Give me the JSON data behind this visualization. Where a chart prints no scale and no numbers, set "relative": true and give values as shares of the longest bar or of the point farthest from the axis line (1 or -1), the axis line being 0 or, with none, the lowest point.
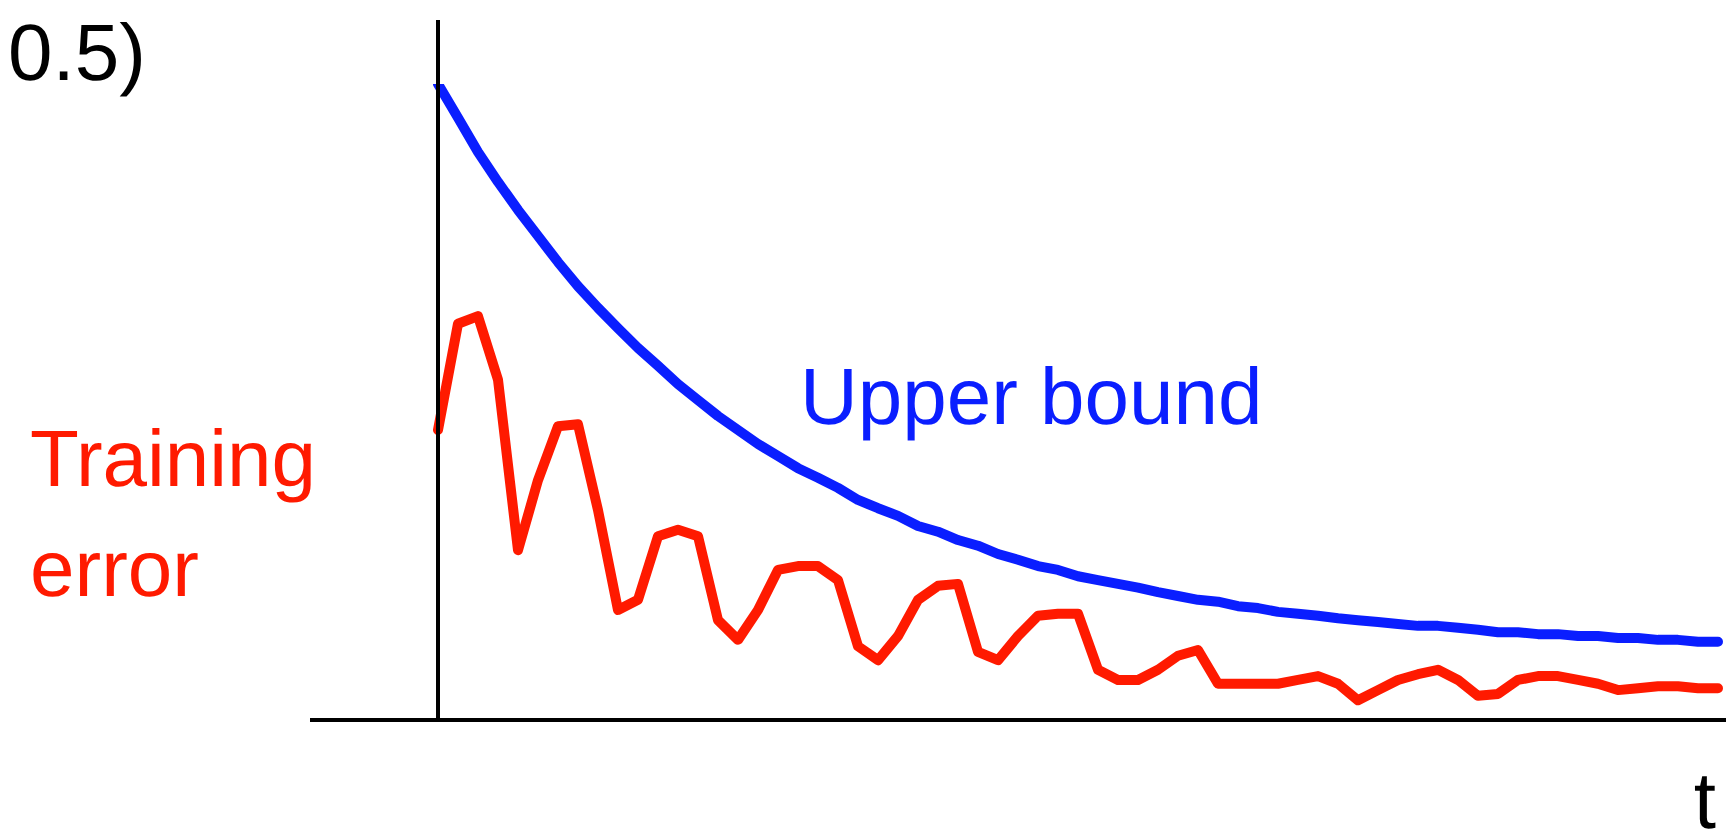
{
  "chart_data": {
    "type": "line",
    "relative": true,
    "xlabel": "t",
    "annotations": [
      "0.5)"
    ],
    "categories": [
      null,
      null,
      null,
      null,
      null,
      null,
      null,
      null,
      null,
      null,
      null,
      null,
      null,
      null,
      null,
      null,
      null,
      null,
      null,
      null,
      null,
      null,
      null,
      null,
      null,
      null,
      null,
      null,
      null,
      null,
      null,
      null,
      null,
      null,
      null,
      null,
      null,
      null,
      null,
      null,
      null,
      null,
      null,
      null,
      null,
      null,
      null,
      null,
      null,
      null,
      null,
      null,
      null,
      null,
      null,
      null,
      null,
      null,
      null,
      null,
      null,
      null,
      null,
      null,
      null
    ],
    "series": [
      {
        "name": "Upper bound",
        "color": "#0a1eff",
        "values": [
          1.0,
          0.947,
          0.893,
          0.846,
          0.802,
          0.761,
          0.72,
          0.682,
          0.648,
          0.616,
          0.585,
          0.557,
          0.528,
          0.503,
          0.478,
          0.456,
          0.434,
          0.415,
          0.396,
          0.381,
          0.365,
          0.346,
          0.333,
          0.321,
          0.305,
          0.296,
          0.283,
          0.274,
          0.261,
          0.252,
          0.242,
          0.236,
          0.226,
          0.22,
          0.214,
          0.208,
          0.201,
          0.195,
          0.189,
          0.186,
          0.179,
          0.176,
          0.17,
          0.167,
          0.164,
          0.16,
          0.157,
          0.154,
          0.151,
          0.148,
          0.148,
          0.145,
          0.142,
          0.138,
          0.138,
          0.135,
          0.135,
          0.132,
          0.132,
          0.129,
          0.129,
          0.126,
          0.126,
          0.123,
          0.123
        ]
      },
      {
        "name": "Training error",
        "color": "#ff1a00",
        "values": [
          0.456,
          0.623,
          0.635,
          0.535,
          0.267,
          0.377,
          0.462,
          0.465,
          0.33,
          0.173,
          0.189,
          0.289,
          0.299,
          0.289,
          0.157,
          0.126,
          0.173,
          0.236,
          0.242,
          0.242,
          0.22,
          0.116,
          0.094,
          0.132,
          0.189,
          0.211,
          0.214,
          0.107,
          0.094,
          0.132,
          0.164,
          0.167,
          0.167,
          0.079,
          0.063,
          0.063,
          0.079,
          0.101,
          0.11,
          0.057,
          0.057,
          0.057,
          0.057,
          0.063,
          0.069,
          0.057,
          0.031,
          0.047,
          0.063,
          0.072,
          0.079,
          0.063,
          0.038,
          0.041,
          0.063,
          0.069,
          0.069,
          0.063,
          0.057,
          0.047,
          0.05,
          0.053,
          0.053,
          0.05,
          0.05
        ]
      }
    ]
  }
}
